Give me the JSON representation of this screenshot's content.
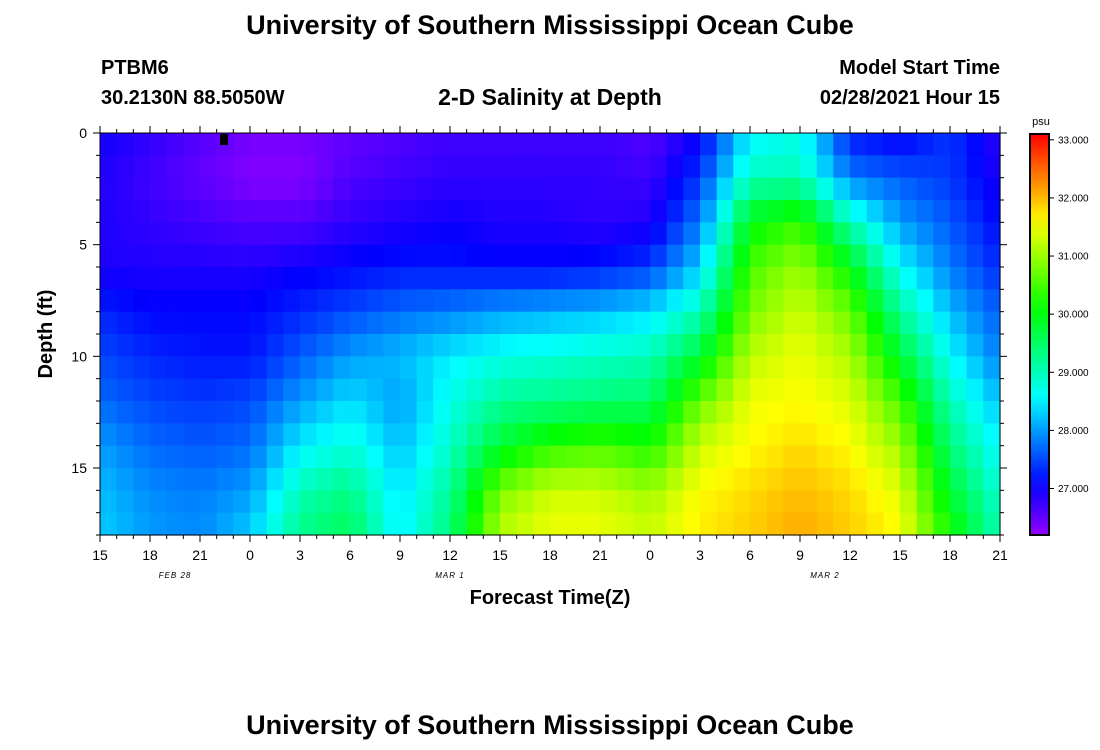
{
  "header": {
    "title": "University of Southern Mississippi Ocean Cube",
    "station": "PTBM6",
    "location": "30.2130N 88.5050W",
    "plot_title": "2-D Salinity at Depth",
    "model_label": "Model Start Time",
    "model_time": "02/28/2021 Hour 15"
  },
  "footer": {
    "title": "University of Southern Mississippi Ocean Cube"
  },
  "chart_data": {
    "type": "heatmap",
    "title": "2-D Salinity at Depth",
    "xlabel": "Forecast Time(Z)",
    "ylabel": "Depth (ft)",
    "x_tick_labels": [
      "15",
      "18",
      "21",
      "0",
      "3",
      "6",
      "9",
      "12",
      "15",
      "18",
      "21",
      "0",
      "3",
      "6",
      "9",
      "12",
      "15",
      "18",
      "21"
    ],
    "x_hours": [
      0,
      3,
      6,
      9,
      12,
      15,
      18,
      21,
      24,
      27,
      30,
      33,
      36,
      39,
      42,
      45,
      48,
      51,
      54
    ],
    "x_date_labels": [
      {
        "label": "FEB 28",
        "hour": 4.5
      },
      {
        "label": "MAR 1",
        "hour": 21
      },
      {
        "label": "MAR 2",
        "hour": 43.5
      }
    ],
    "xlim_hours": [
      0,
      54
    ],
    "y_ticks": [
      0,
      5,
      10,
      15
    ],
    "ylim": [
      0,
      18
    ],
    "colorbar": {
      "unit": "psu",
      "range": [
        26.2,
        33.1
      ],
      "tick_values": [
        27,
        28,
        29,
        30,
        31,
        32,
        33
      ],
      "tick_labels": [
        "27.000",
        "28.000",
        "29.000",
        "30.000",
        "31.000",
        "32.000",
        "33.000"
      ]
    },
    "depths": [
      0,
      2,
      4,
      6,
      8,
      10,
      12,
      14,
      16,
      18
    ],
    "times": [
      0,
      3,
      6,
      9,
      12,
      15,
      18,
      21,
      24,
      27,
      30,
      33,
      36,
      39,
      42,
      45,
      48,
      51,
      54
    ],
    "values": [
      [
        27.0,
        26.8,
        26.6,
        26.4,
        26.4,
        26.5,
        26.6,
        26.7,
        26.7,
        26.7,
        26.7,
        26.6,
        27.0,
        28.5,
        28.7,
        27.2,
        27.0,
        27.4,
        26.8
      ],
      [
        26.9,
        26.7,
        26.5,
        26.3,
        26.3,
        26.6,
        26.7,
        26.8,
        26.8,
        26.8,
        26.8,
        26.7,
        27.4,
        29.0,
        29.0,
        27.8,
        27.6,
        27.4,
        26.9
      ],
      [
        26.9,
        26.8,
        26.7,
        26.6,
        26.6,
        26.8,
        26.9,
        27.0,
        26.9,
        26.9,
        26.8,
        26.9,
        27.8,
        30.0,
        30.4,
        29.0,
        28.0,
        27.6,
        27.1
      ],
      [
        26.9,
        26.9,
        26.9,
        26.9,
        27.0,
        27.1,
        27.2,
        27.2,
        27.1,
        27.1,
        27.2,
        27.4,
        28.3,
        30.5,
        31.0,
        30.0,
        28.6,
        27.8,
        27.3
      ],
      [
        27.3,
        27.1,
        27.1,
        27.1,
        27.3,
        27.5,
        27.7,
        27.8,
        28.0,
        28.1,
        28.2,
        28.4,
        29.0,
        30.8,
        31.3,
        30.7,
        29.2,
        28.2,
        27.6
      ],
      [
        27.5,
        27.3,
        27.2,
        27.2,
        27.6,
        28.0,
        28.2,
        28.5,
        28.7,
        28.8,
        28.9,
        29.0,
        29.8,
        31.2,
        31.5,
        31.1,
        29.8,
        28.6,
        27.8
      ],
      [
        27.7,
        27.5,
        27.4,
        27.5,
        28.0,
        28.4,
        28.0,
        28.7,
        29.2,
        29.3,
        29.4,
        29.5,
        30.7,
        31.5,
        31.6,
        31.4,
        30.5,
        29.0,
        28.2
      ],
      [
        28.0,
        27.7,
        27.6,
        27.7,
        28.5,
        28.8,
        28.2,
        28.9,
        29.8,
        30.3,
        30.5,
        30.2,
        31.3,
        31.6,
        31.8,
        31.6,
        31.0,
        29.4,
        28.5
      ],
      [
        28.2,
        27.9,
        27.8,
        28.0,
        29.0,
        29.3,
        28.4,
        29.2,
        30.8,
        31.3,
        31.3,
        31.0,
        31.6,
        31.8,
        32.0,
        31.8,
        31.4,
        29.8,
        28.8
      ],
      [
        28.3,
        28.0,
        27.9,
        28.3,
        29.3,
        29.6,
        28.5,
        29.4,
        31.2,
        31.5,
        31.5,
        31.3,
        31.7,
        31.9,
        32.1,
        31.9,
        31.6,
        30.2,
        29.0
      ]
    ]
  }
}
